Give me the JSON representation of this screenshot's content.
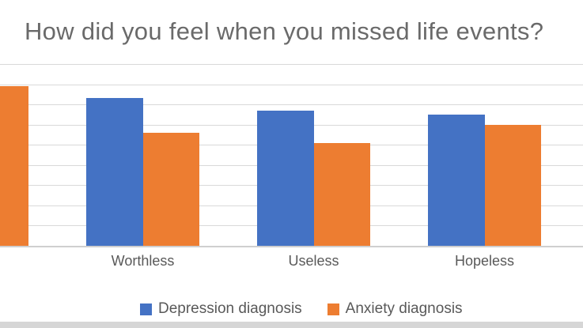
{
  "chart_data": {
    "type": "bar",
    "title": "How did you feel when you missed life events?",
    "categories": [
      "",
      "Worthless",
      "Useless",
      "Hopeless"
    ],
    "series": [
      {
        "name": "Depression diagnosis",
        "color": "#4472c4",
        "values": [
          null,
          73,
          67,
          65
        ]
      },
      {
        "name": "Anxiety diagnosis",
        "color": "#ed7d31",
        "values": [
          79,
          56,
          51,
          60
        ]
      }
    ],
    "xlabel": "",
    "ylabel": "",
    "ylim": [
      0,
      90
    ],
    "gridline_step": 10,
    "grid": true,
    "legend_position": "bottom",
    "y_axis_labels_visible": false,
    "first_group_clipped_at_left": true
  },
  "colors": {
    "background": "#ffffff",
    "title_text": "#6a6a6a",
    "axis_text": "#595959",
    "gridline": "#d9d9d9",
    "axis_line": "#cfcfcf",
    "bottom_band": "#d6d6d6"
  }
}
